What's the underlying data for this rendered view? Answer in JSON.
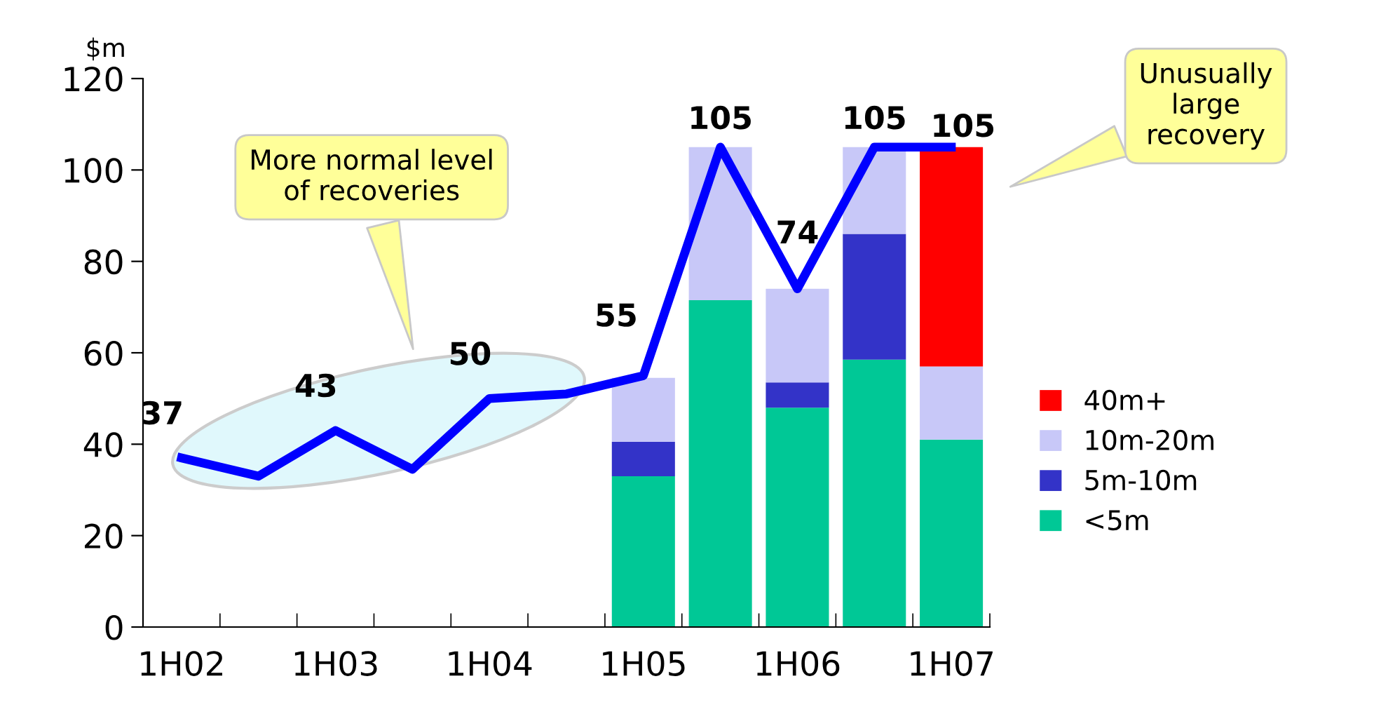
{
  "chart_data": {
    "type": "bar",
    "stacked": true,
    "ylabel": "$m",
    "categories": [
      "1H02",
      null,
      "1H03",
      null,
      "1H04",
      null,
      "1H05",
      null,
      "1H06",
      null,
      "1H07"
    ],
    "ylim": [
      0,
      120
    ],
    "yticks": [
      0,
      20,
      40,
      60,
      80,
      100,
      120
    ],
    "series": [
      {
        "name": "<5m",
        "color": "#00c896",
        "values": [
          null,
          null,
          null,
          null,
          null,
          null,
          33,
          71.5,
          48,
          58.5,
          41
        ]
      },
      {
        "name": "5m-10m",
        "color": "#3333c8",
        "values": [
          null,
          null,
          null,
          null,
          null,
          null,
          7.5,
          0,
          5.5,
          27.5,
          0
        ]
      },
      {
        "name": "10m-20m",
        "color": "#c8c8f8",
        "values": [
          null,
          null,
          null,
          null,
          null,
          null,
          14,
          33.5,
          20.5,
          19,
          16
        ]
      },
      {
        "name": "40m+",
        "color": "#ff0000",
        "values": [
          null,
          null,
          null,
          null,
          null,
          null,
          null,
          null,
          null,
          null,
          48
        ]
      },
      {
        "type": "line",
        "color": "#0000ff",
        "values": [
          37,
          33,
          43,
          34.5,
          50,
          51,
          55,
          105,
          74,
          105,
          105
        ],
        "value_labels": [
          "37",
          null,
          "43",
          null,
          "50",
          null,
          "55",
          "105",
          "74",
          "105",
          "105"
        ]
      }
    ],
    "legend": "right",
    "grid": false,
    "annotations": [
      "More normal level\nof recoveries",
      "Unusually\nlarge\nrecovery"
    ]
  }
}
